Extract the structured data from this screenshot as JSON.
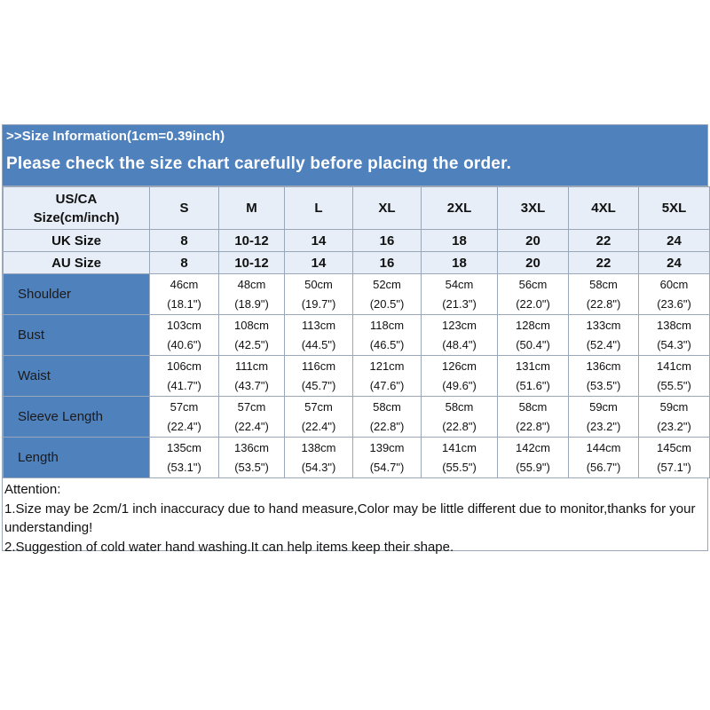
{
  "header": {
    "info": ">>Size Information(1cm=0.39inch)",
    "notice": "Please check the size chart carefully before placing the order."
  },
  "table": {
    "corner_line1": "US/CA",
    "corner_line2": "Size(cm/inch)",
    "sizes": [
      "S",
      "M",
      "L",
      "XL",
      "2XL",
      "3XL",
      "4XL",
      "5XL"
    ],
    "uk_label": "UK Size",
    "uk": [
      "8",
      "10-12",
      "14",
      "16",
      "18",
      "20",
      "22",
      "24"
    ],
    "au_label": "AU Size",
    "au": [
      "8",
      "10-12",
      "14",
      "16",
      "18",
      "20",
      "22",
      "24"
    ],
    "measurements": [
      {
        "label": "Shoulder",
        "cm": [
          "46cm",
          "48cm",
          "50cm",
          "52cm",
          "54cm",
          "56cm",
          "58cm",
          "60cm"
        ],
        "inch": [
          "(18.1\")",
          "(18.9\")",
          "(19.7\")",
          "(20.5\")",
          "(21.3\")",
          "(22.0\")",
          "(22.8\")",
          "(23.6\")"
        ]
      },
      {
        "label": "Bust",
        "cm": [
          "103cm",
          "108cm",
          "113cm",
          "118cm",
          "123cm",
          "128cm",
          "133cm",
          "138cm"
        ],
        "inch": [
          "(40.6\")",
          "(42.5\")",
          "(44.5\")",
          "(46.5\")",
          "(48.4\")",
          "(50.4\")",
          "(52.4\")",
          "(54.3\")"
        ]
      },
      {
        "label": "Waist",
        "cm": [
          "106cm",
          "111cm",
          "116cm",
          "121cm",
          "126cm",
          "131cm",
          "136cm",
          "141cm"
        ],
        "inch": [
          "(41.7\")",
          "(43.7\")",
          "(45.7\")",
          "(47.6\")",
          "(49.6\")",
          "(51.6\")",
          "(53.5\")",
          "(55.5\")"
        ]
      },
      {
        "label": "Sleeve Length",
        "cm": [
          "57cm",
          "57cm",
          "57cm",
          "58cm",
          "58cm",
          "58cm",
          "59cm",
          "59cm"
        ],
        "inch": [
          "(22.4\")",
          "(22.4\")",
          "(22.4\")",
          "(22.8\")",
          "(22.8\")",
          "(22.8\")",
          "(23.2\")",
          "(23.2\")"
        ]
      },
      {
        "label": "Length",
        "cm": [
          "135cm",
          "136cm",
          "138cm",
          "139cm",
          "141cm",
          "142cm",
          "144cm",
          "145cm"
        ],
        "inch": [
          "(53.1\")",
          "(53.5\")",
          "(54.3\")",
          "(54.7\")",
          "(55.5\")",
          "(55.9\")",
          "(56.7\")",
          "(57.1\")"
        ]
      }
    ]
  },
  "attention": {
    "title": "Attention:",
    "note1": "1.Size may be 2cm/1 inch inaccuracy due to hand measure,Color may be little different due to monitor,thanks for your understanding!",
    "note2": "2.Suggestion of cold water hand washing.It can help items keep their shape."
  },
  "colors": {
    "header_blue": "#4f81bd",
    "light_blue": "#e7eef7",
    "border": "#9aa7b8"
  }
}
